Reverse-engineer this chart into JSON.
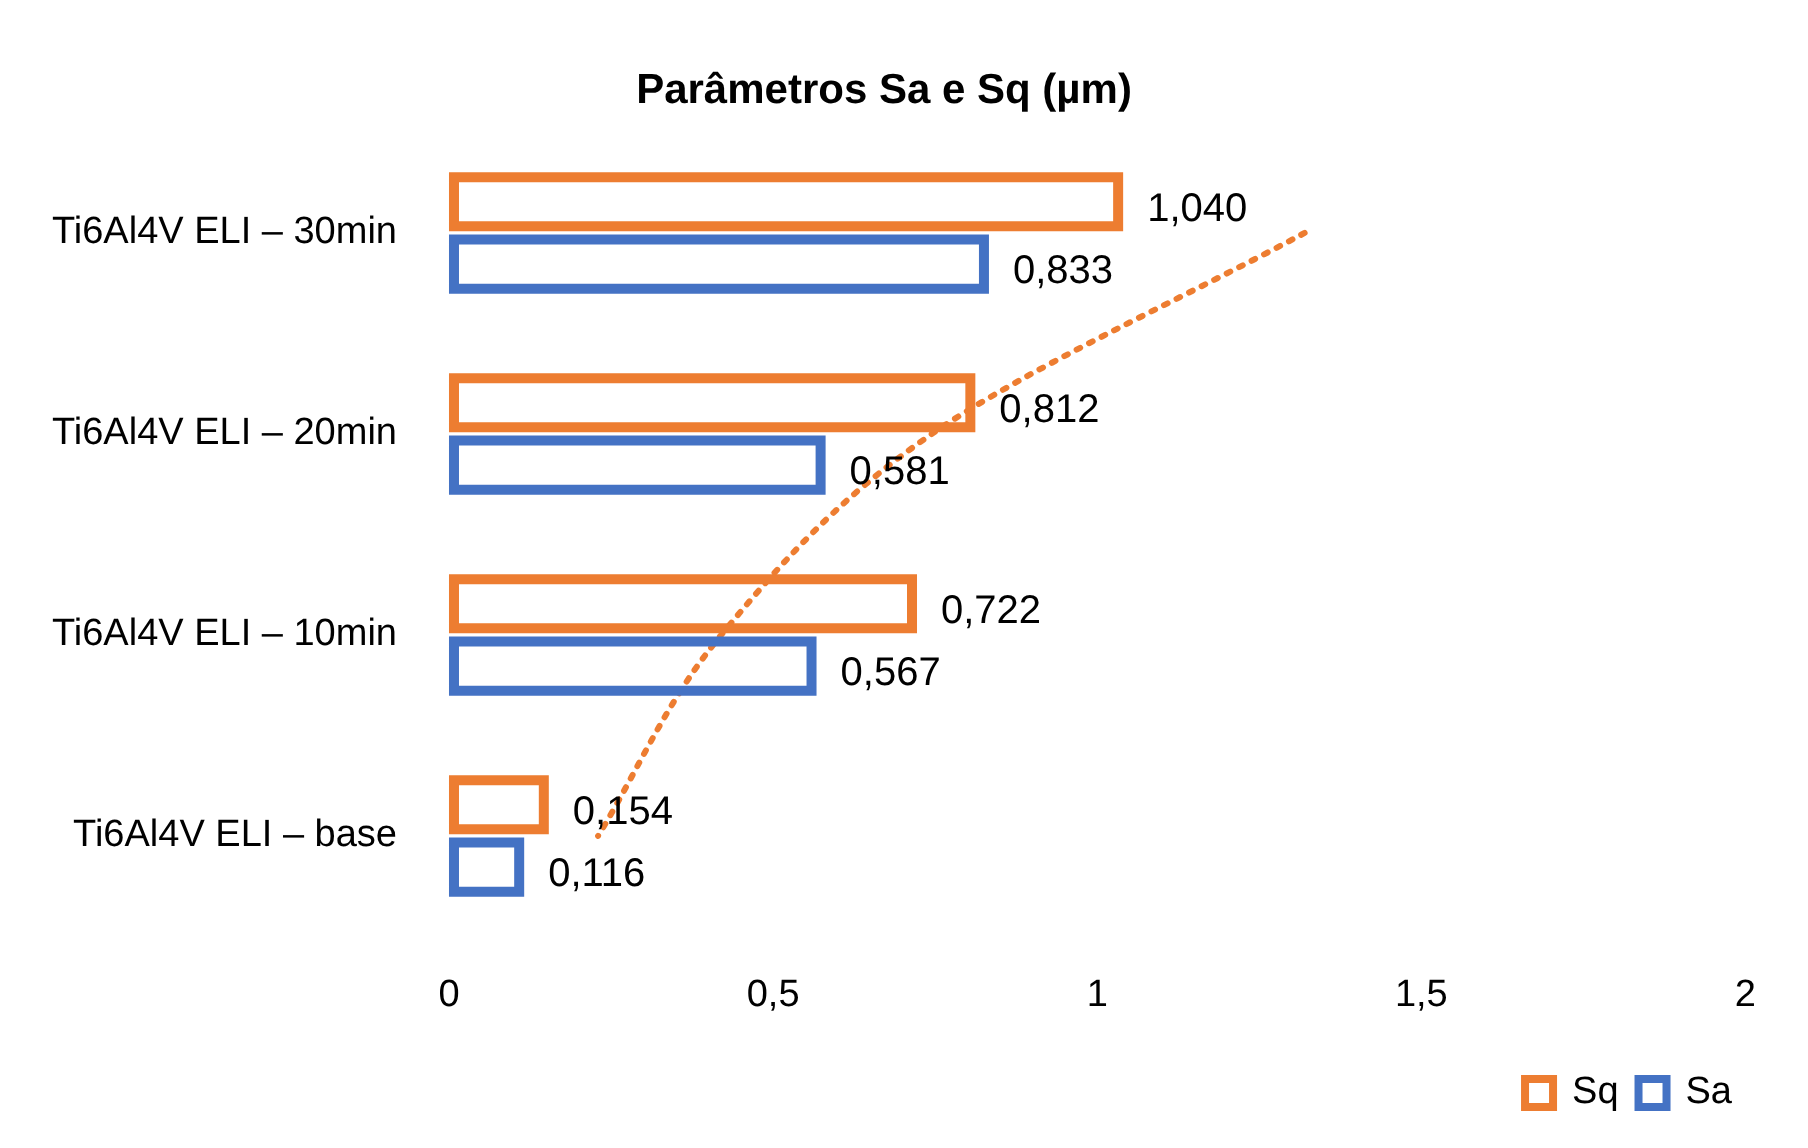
{
  "chart_data": {
    "type": "bar",
    "orientation": "horizontal",
    "title": "Parâmetros Sa e Sq (µm)",
    "categories": [
      "Ti6Al4V ELI – 30min",
      "Ti6Al4V ELI – 20min",
      "Ti6Al4V ELI – 10min",
      "Ti6Al4V ELI – base"
    ],
    "series": [
      {
        "name": "Sq",
        "color": "#ed7d31",
        "values": [
          1.04,
          0.812,
          0.722,
          0.154
        ],
        "value_labels": [
          "1,040",
          "0,812",
          "0,722",
          "0,154"
        ]
      },
      {
        "name": "Sa",
        "color": "#4472c4",
        "values": [
          0.833,
          0.581,
          0.567,
          0.116
        ],
        "value_labels": [
          "0,833",
          "0,581",
          "0,567",
          "0,116"
        ]
      },
      {
        "type": "line",
        "color": "#ed7d31",
        "line_style": "dotted",
        "marker": "none",
        "values": [
          1.32,
          0.745,
          0.42,
          0.23
        ]
      }
    ],
    "xlim": [
      0,
      2
    ],
    "xticks": [
      0,
      {
        "value": 0.5,
        "label": "0,5"
      },
      1,
      {
        "value": 1.5,
        "label": "1,5"
      },
      2
    ],
    "grid": false,
    "legend": "bottom right"
  }
}
